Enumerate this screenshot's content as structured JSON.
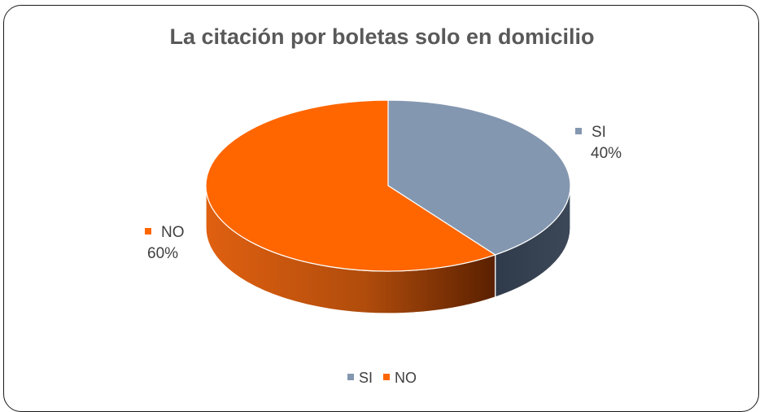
{
  "chart_data": {
    "type": "pie",
    "title": "La citación por boletas solo en domicilio",
    "slices": [
      {
        "label": "SI",
        "value": 40,
        "percent_label": "40%",
        "color": "#8497b0",
        "side_color": "#333f50"
      },
      {
        "label": "NO",
        "value": 60,
        "percent_label": "60%",
        "color": "#ff6600",
        "side_color": "#c55a11"
      }
    ],
    "legend_position": "bottom",
    "three_d": true
  }
}
